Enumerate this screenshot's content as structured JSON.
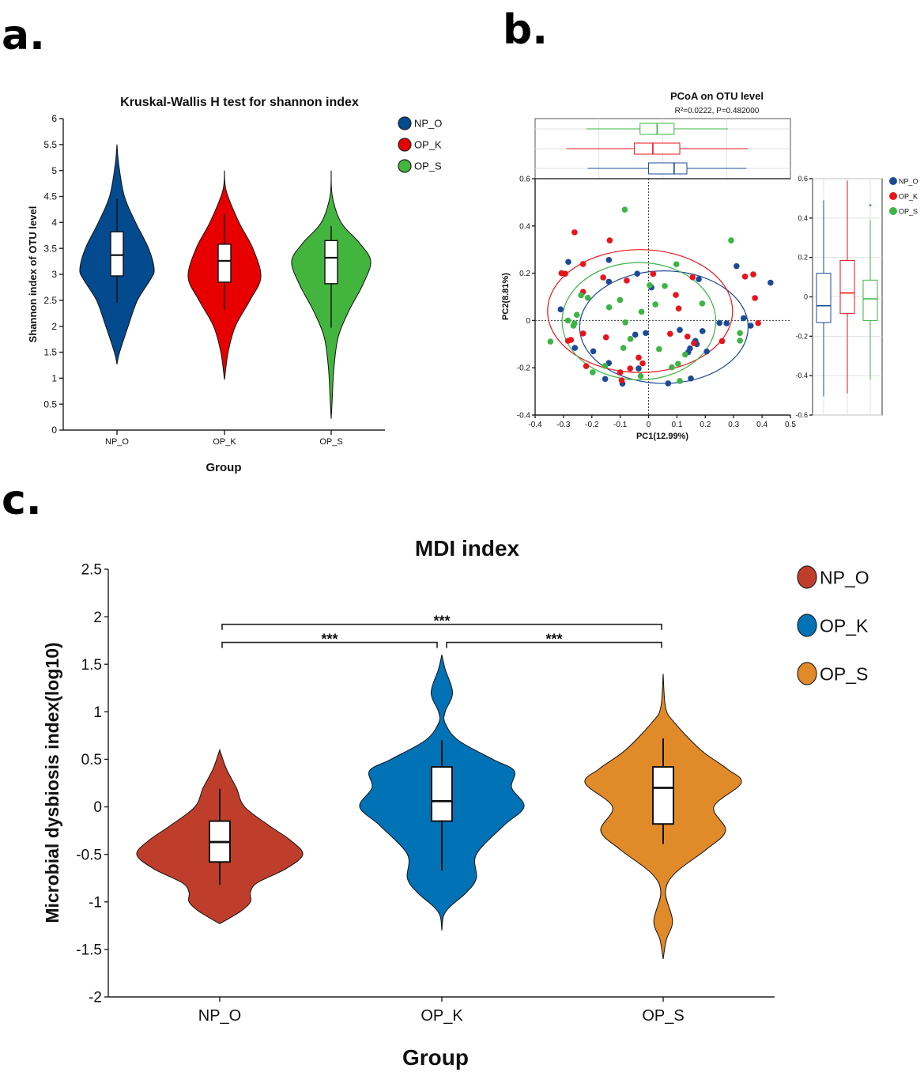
{
  "panel_labels": {
    "a": "a.",
    "b": "b.",
    "c": "c."
  },
  "chart_data": [
    {
      "id": "a",
      "type": "violin",
      "title": "Kruskal-Wallis H test for shannon index",
      "xlabel": "Group",
      "ylabel": "Shannon index of OTU level",
      "ylim": [
        0,
        6
      ],
      "yticks": [
        "0",
        "0.5",
        "1",
        "1.5",
        "2",
        "2.5",
        "3",
        "3.5",
        "4",
        "4.5",
        "5",
        "5.5",
        "6"
      ],
      "categories": [
        "NP_O",
        "OP_K",
        "OP_S"
      ],
      "legend": {
        "placement": "top-right",
        "entries": [
          "NP_O",
          "OP_K",
          "OP_S"
        ]
      },
      "colors": [
        "#034a8f",
        "#e80000",
        "#43b43e"
      ],
      "series": [
        {
          "name": "NP_O",
          "relative_max_density": 0.94,
          "whisker": [
            2.45,
            4.45
          ],
          "q1": 2.97,
          "median": 3.37,
          "q3": 3.82,
          "density": [
            [
              5.5,
              0
            ],
            [
              5.1,
              0.05
            ],
            [
              4.5,
              0.2
            ],
            [
              4.0,
              0.5
            ],
            [
              3.5,
              0.85
            ],
            [
              3.1,
              1.0
            ],
            [
              2.9,
              0.9
            ],
            [
              2.5,
              0.55
            ],
            [
              2.0,
              0.3
            ],
            [
              1.5,
              0.07
            ],
            [
              1.27,
              0
            ]
          ]
        },
        {
          "name": "OP_K",
          "relative_max_density": 0.92,
          "whisker": [
            2.32,
            4.17
          ],
          "q1": 2.85,
          "median": 3.26,
          "q3": 3.58,
          "density": [
            [
              5.0,
              0
            ],
            [
              4.6,
              0.05
            ],
            [
              4.0,
              0.4
            ],
            [
              3.5,
              0.78
            ],
            [
              2.95,
              1.0
            ],
            [
              2.5,
              0.7
            ],
            [
              2.0,
              0.3
            ],
            [
              1.5,
              0.1
            ],
            [
              0.97,
              0
            ]
          ]
        },
        {
          "name": "OP_S",
          "relative_max_density": 1.0,
          "whisker": [
            1.97,
            3.93
          ],
          "q1": 2.82,
          "median": 3.32,
          "q3": 3.65,
          "density": [
            [
              5.0,
              0
            ],
            [
              4.5,
              0.03
            ],
            [
              4.0,
              0.25
            ],
            [
              3.6,
              0.72
            ],
            [
              3.25,
              1.0
            ],
            [
              2.8,
              0.8
            ],
            [
              2.3,
              0.45
            ],
            [
              1.8,
              0.18
            ],
            [
              1.2,
              0.07
            ],
            [
              0.5,
              0.02
            ],
            [
              0.22,
              0
            ]
          ]
        }
      ]
    },
    {
      "id": "b",
      "type": "scatter",
      "title": "PCoA on OTU level",
      "subtitle": "R²=0.0222, P=0.482000",
      "xlabel": "PC1(12.99%)",
      "ylabel": "PC2(8.81%)",
      "xlim": [
        -0.4,
        0.5
      ],
      "ylim": [
        -0.4,
        0.6
      ],
      "xticks": [
        "-0.4",
        "-0.3",
        "-0.2",
        "-0.1",
        "0",
        "0.1",
        "0.2",
        "0.3",
        "0.4",
        "0.5"
      ],
      "yticks": [
        "-0.4",
        "-0.2",
        "0",
        "0.2",
        "0.4",
        "0.6"
      ],
      "right_yticks": [
        "-0.6",
        "-0.4",
        "-0.2",
        "0",
        "0.2",
        "0.4",
        "0.6"
      ],
      "right_ylim": [
        -0.6,
        0.6
      ],
      "legend": {
        "placement": "right",
        "entries": [
          "NP_O",
          "OP_K",
          "OP_S"
        ]
      },
      "colors": [
        "#1c4a97",
        "#e8141c",
        "#3db544"
      ],
      "series": [
        {
          "name": "NP_O",
          "ellipse": {
            "cx": 0.054,
            "cy": -0.028,
            "rx": 0.297,
            "ry": 0.238
          },
          "pc1_box": {
            "whisker": [
              -0.215,
              0.345
            ],
            "q1": 0.0,
            "median": 0.09,
            "q3": 0.135
          },
          "pc2_box": {
            "whisker": [
              -0.505,
              0.49
            ],
            "q1": -0.13,
            "median": -0.045,
            "q3": 0.12,
            "outliers": []
          },
          "points": [
            [
              -0.283,
              0.248
            ],
            [
              -0.14,
              0.256
            ],
            [
              -0.04,
              0.198
            ],
            [
              -0.14,
              0.164
            ],
            [
              0.01,
              0.14
            ],
            [
              0.31,
              0.23
            ],
            [
              0.177,
              0.175
            ],
            [
              0.43,
              0.16
            ],
            [
              -0.31,
              0.047
            ],
            [
              0.335,
              0.01
            ],
            [
              0.36,
              -0.022
            ],
            [
              0.25,
              -0.01
            ],
            [
              0.275,
              -0.012
            ],
            [
              0.11,
              -0.04
            ],
            [
              0.19,
              -0.045
            ],
            [
              -0.01,
              -0.053
            ],
            [
              -0.047,
              -0.06
            ],
            [
              -0.26,
              -0.116
            ],
            [
              -0.195,
              -0.13
            ],
            [
              0.165,
              -0.086
            ],
            [
              0.17,
              -0.1
            ],
            [
              0.146,
              -0.118
            ],
            [
              0.14,
              -0.134
            ],
            [
              0.205,
              -0.131
            ],
            [
              -0.14,
              -0.18
            ],
            [
              -0.035,
              -0.203
            ],
            [
              -0.153,
              -0.247
            ],
            [
              -0.092,
              -0.267
            ],
            [
              0.069,
              -0.266
            ],
            [
              0.149,
              -0.245
            ]
          ]
        },
        {
          "name": "OP_K",
          "ellipse": {
            "cx": -0.03,
            "cy": 0.04,
            "rx": 0.326,
            "ry": 0.26
          },
          "pc1_box": {
            "whisker": [
              -0.29,
              0.35
            ],
            "q1": -0.05,
            "median": 0.015,
            "q3": 0.11
          },
          "pc2_box": {
            "whisker": [
              -0.49,
              0.59
            ],
            "q1": -0.085,
            "median": 0.02,
            "q3": 0.185,
            "outliers": []
          },
          "points": [
            [
              -0.261,
              0.373
            ],
            [
              -0.137,
              0.339
            ],
            [
              -0.231,
              0.239
            ],
            [
              -0.307,
              0.2
            ],
            [
              -0.294,
              0.198
            ],
            [
              -0.16,
              0.182
            ],
            [
              -0.077,
              0.169
            ],
            [
              0.016,
              0.197
            ],
            [
              0.155,
              0.183
            ],
            [
              0.34,
              0.186
            ],
            [
              0.369,
              0.195
            ],
            [
              0.375,
              0.095
            ],
            [
              0.096,
              0.108
            ],
            [
              0.106,
              0.051
            ],
            [
              -0.231,
              0.121
            ],
            [
              0.386,
              -0.011
            ],
            [
              -0.231,
              -0.055
            ],
            [
              -0.15,
              -0.071
            ],
            [
              0.076,
              -0.056
            ],
            [
              0.137,
              -0.068
            ],
            [
              0.16,
              -0.096
            ],
            [
              0.259,
              -0.087
            ],
            [
              -0.274,
              -0.082
            ],
            [
              -0.284,
              -0.086
            ],
            [
              -0.035,
              -0.157
            ],
            [
              -0.021,
              -0.181
            ],
            [
              -0.065,
              -0.203
            ],
            [
              -0.1,
              -0.219
            ],
            [
              -0.095,
              -0.253
            ],
            [
              -0.22,
              -0.193
            ]
          ]
        },
        {
          "name": "OP_S",
          "ellipse": {
            "cx": -0.034,
            "cy": -0.003,
            "rx": 0.271,
            "ry": 0.248
          },
          "pc1_box": {
            "whisker": [
              -0.22,
              0.28
            ],
            "q1": -0.03,
            "median": 0.03,
            "q3": 0.09
          },
          "pc2_box": {
            "whisker": [
              -0.42,
              0.39
            ],
            "q1": -0.12,
            "median": -0.01,
            "q3": 0.085,
            "outliers": [
              0.465
            ]
          },
          "points": [
            [
              -0.084,
              0.469
            ],
            [
              0.291,
              0.339
            ],
            [
              0.098,
              0.238
            ],
            [
              0.057,
              0.146
            ],
            [
              0.004,
              0.149
            ],
            [
              -0.238,
              0.107
            ],
            [
              -0.214,
              0.096
            ],
            [
              -0.101,
              0.087
            ],
            [
              0.024,
              0.068
            ],
            [
              0.189,
              0.072
            ],
            [
              -0.139,
              0.056
            ],
            [
              -0.025,
              0.037
            ],
            [
              -0.253,
              0.024
            ],
            [
              -0.284,
              0
            ],
            [
              -0.261,
              -0.012
            ],
            [
              -0.265,
              -0.022
            ],
            [
              -0.082,
              -0.008
            ],
            [
              -0.346,
              -0.089
            ],
            [
              -0.064,
              -0.078
            ],
            [
              -0.089,
              -0.116
            ],
            [
              0.037,
              -0.121
            ],
            [
              0.129,
              -0.144
            ],
            [
              0.322,
              -0.053
            ],
            [
              0.322,
              -0.085
            ],
            [
              -0.197,
              -0.219
            ],
            [
              -0.153,
              -0.192
            ],
            [
              -0.028,
              -0.235
            ],
            [
              0.082,
              -0.198
            ],
            [
              0.104,
              -0.183
            ],
            [
              0.11,
              -0.256
            ]
          ]
        }
      ]
    },
    {
      "id": "c",
      "type": "violin",
      "title": "MDI index",
      "xlabel": "Group",
      "ylabel": "Microbial dysbiosis index(log10)",
      "ylim": [
        -2,
        2.5
      ],
      "yticks": [
        "-2",
        "-1.5",
        "-1",
        "-0.5",
        "0",
        "0.5",
        "1",
        "1.5",
        "2",
        "2.5"
      ],
      "categories": [
        "NP_O",
        "OP_K",
        "OP_S"
      ],
      "legend": {
        "placement": "top-right",
        "entries": [
          "NP_O",
          "OP_K",
          "OP_S"
        ]
      },
      "colors": [
        "#bf3e2b",
        "#0172b6",
        "#e18a2a"
      ],
      "significance": [
        {
          "from": "NP_O",
          "to": "OP_K",
          "y": 1.73,
          "label": "***"
        },
        {
          "from": "OP_K",
          "to": "OP_S",
          "y": 1.73,
          "label": "***"
        },
        {
          "from": "NP_O",
          "to": "OP_S",
          "y": 1.92,
          "label": "***"
        }
      ],
      "series": [
        {
          "name": "NP_O",
          "relative_max_density": 1.0,
          "whisker": [
            -0.82,
            0.19
          ],
          "q1": -0.58,
          "median": -0.37,
          "q3": -0.15,
          "density": [
            [
              0.6,
              0
            ],
            [
              0.4,
              0.08
            ],
            [
              0.2,
              0.2
            ],
            [
              0.0,
              0.3
            ],
            [
              -0.2,
              0.6
            ],
            [
              -0.35,
              0.85
            ],
            [
              -0.5,
              1.0
            ],
            [
              -0.65,
              0.8
            ],
            [
              -0.8,
              0.45
            ],
            [
              -0.9,
              0.37
            ],
            [
              -1.0,
              0.37
            ],
            [
              -1.1,
              0.25
            ],
            [
              -1.23,
              0
            ]
          ]
        },
        {
          "name": "OP_K",
          "relative_max_density": 0.99,
          "whisker": [
            -0.67,
            0.7
          ],
          "q1": -0.15,
          "median": 0.06,
          "q3": 0.42,
          "density": [
            [
              1.6,
              0
            ],
            [
              1.45,
              0.04
            ],
            [
              1.2,
              0.13
            ],
            [
              1.0,
              0.04
            ],
            [
              0.88,
              0.04
            ],
            [
              0.7,
              0.2
            ],
            [
              0.5,
              0.62
            ],
            [
              0.38,
              0.88
            ],
            [
              0.2,
              0.85
            ],
            [
              0.0,
              1.0
            ],
            [
              -0.2,
              0.75
            ],
            [
              -0.5,
              0.42
            ],
            [
              -0.75,
              0.42
            ],
            [
              -0.9,
              0.3
            ],
            [
              -1.05,
              0.1
            ],
            [
              -1.15,
              0.02
            ],
            [
              -1.3,
              0
            ]
          ]
        },
        {
          "name": "OP_S",
          "relative_max_density": 0.94,
          "whisker": [
            -0.39,
            0.72
          ],
          "q1": -0.18,
          "median": 0.2,
          "q3": 0.42,
          "density": [
            [
              1.4,
              0
            ],
            [
              1.05,
              0.03
            ],
            [
              0.9,
              0.13
            ],
            [
              0.6,
              0.48
            ],
            [
              0.4,
              0.82
            ],
            [
              0.25,
              1.0
            ],
            [
              0.0,
              0.65
            ],
            [
              -0.25,
              0.8
            ],
            [
              -0.45,
              0.55
            ],
            [
              -0.7,
              0.15
            ],
            [
              -0.9,
              0.03
            ],
            [
              -1.2,
              0.12
            ],
            [
              -1.4,
              0.04
            ],
            [
              -1.6,
              0
            ]
          ]
        }
      ]
    }
  ]
}
